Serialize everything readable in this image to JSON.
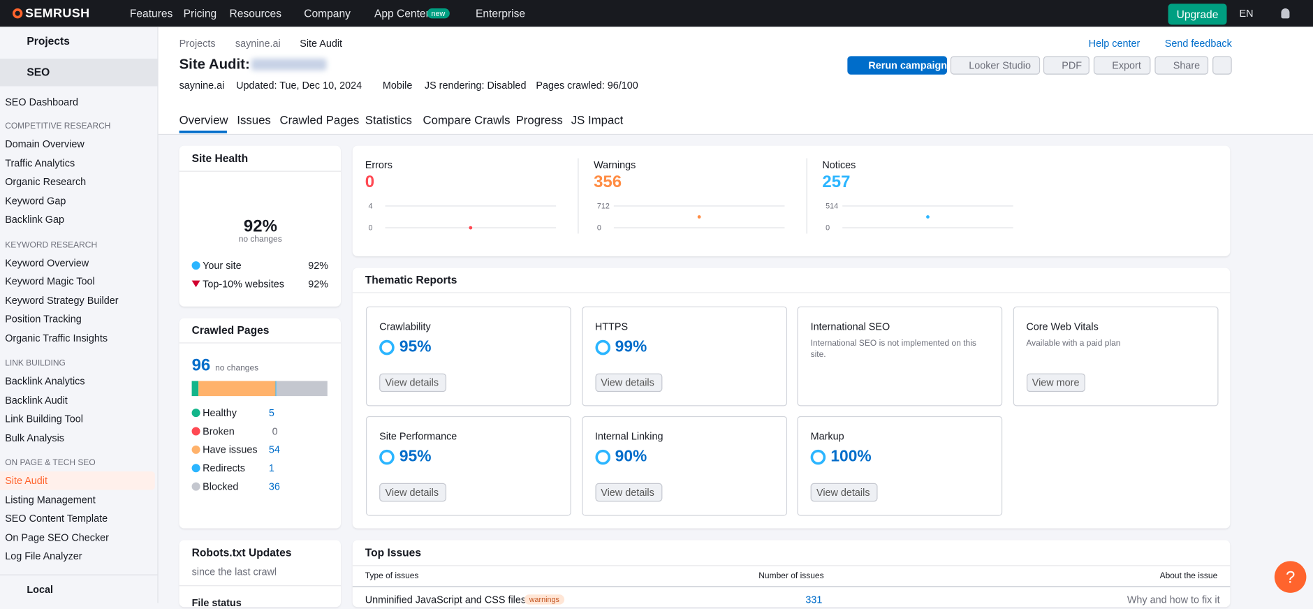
{
  "nav": {
    "logo": "SEMRUSH",
    "items": [
      "Features",
      "Pricing",
      "Resources",
      "Company",
      "App Center",
      "Enterprise"
    ],
    "badge": "new",
    "upgrade": "Upgrade",
    "lang": "EN"
  },
  "sidebar": {
    "projects": "Projects",
    "seo": "SEO",
    "dashboard": "SEO Dashboard",
    "groups": [
      {
        "title": "COMPETITIVE RESEARCH",
        "items": [
          "Domain Overview",
          "Traffic Analytics",
          "Organic Research",
          "Keyword Gap",
          "Backlink Gap"
        ]
      },
      {
        "title": "KEYWORD RESEARCH",
        "items": [
          "Keyword Overview",
          "Keyword Magic Tool",
          "Keyword Strategy Builder",
          "Position Tracking",
          "Organic Traffic Insights"
        ]
      },
      {
        "title": "LINK BUILDING",
        "items": [
          "Backlink Analytics",
          "Backlink Audit",
          "Link Building Tool",
          "Bulk Analysis"
        ]
      },
      {
        "title": "ON PAGE & TECH SEO",
        "items": [
          "Site Audit",
          "Listing Management",
          "SEO Content Template",
          "On Page SEO Checker",
          "Log File Analyzer"
        ]
      }
    ],
    "active": "Site Audit",
    "local": "Local"
  },
  "header": {
    "breadcrumbs": [
      "Projects",
      "saynine.ai",
      "Site Audit"
    ],
    "title": "Site Audit:",
    "help": "Help center",
    "feedback": "Send feedback",
    "buttons": [
      "Rerun campaign",
      "Looker Studio",
      "PDF",
      "Export",
      "Share"
    ],
    "meta": [
      "saynine.ai",
      "Updated: Tue, Dec 10, 2024",
      "Mobile",
      "JS rendering: Disabled",
      "Pages crawled: 96/100"
    ],
    "tabs": [
      "Overview",
      "Issues",
      "Crawled Pages",
      "Statistics",
      "Compare Crawls",
      "Progress",
      "JS Impact"
    ]
  },
  "site_health": {
    "title": "Site Health",
    "value": "92%",
    "note": "no changes",
    "legend": [
      {
        "label": "Your site",
        "value": "92%"
      },
      {
        "label": "Top-10% websites",
        "value": "92%"
      }
    ]
  },
  "crawled_pages": {
    "title": "Crawled Pages",
    "total": 96,
    "note": "no changes",
    "rows": [
      {
        "label": "Healthy",
        "count": 5,
        "color": "#13b58a"
      },
      {
        "label": "Broken",
        "count": 0,
        "color": "#ff4953"
      },
      {
        "label": "Have issues",
        "count": 54,
        "color": "#ffb26b"
      },
      {
        "label": "Redirects",
        "count": 1,
        "color": "#2bb5ff"
      },
      {
        "label": "Blocked",
        "count": 36,
        "color": "#c4c7cf"
      }
    ]
  },
  "robots": {
    "title": "Robots.txt Updates",
    "subtitle": "since the last crawl",
    "label": "File status"
  },
  "issues_summary": [
    {
      "label": "Errors",
      "value": 0,
      "ticks": [
        4,
        0
      ],
      "color": "#ff4953"
    },
    {
      "label": "Warnings",
      "value": 356,
      "ticks": [
        712,
        0
      ],
      "color": "#ff8c43"
    },
    {
      "label": "Notices",
      "value": 257,
      "ticks": [
        514,
        0
      ],
      "color": "#2bb5ff"
    }
  ],
  "thematic": {
    "title": "Thematic Reports",
    "cards": [
      {
        "title": "Crawlability",
        "score": "95%",
        "button": "View details"
      },
      {
        "title": "HTTPS",
        "score": "99%",
        "button": "View details"
      },
      {
        "title": "International SEO",
        "text": "International SEO is not implemented on this site."
      },
      {
        "title": "Core Web Vitals",
        "text": "Available with a paid plan",
        "button": "View more"
      },
      {
        "title": "Site Performance",
        "score": "95%",
        "button": "View details"
      },
      {
        "title": "Internal Linking",
        "score": "90%",
        "button": "View details"
      },
      {
        "title": "Markup",
        "score": "100%",
        "button": "View details"
      }
    ]
  },
  "top_issues": {
    "title": "Top Issues",
    "columns": [
      "Type of issues",
      "Number of issues",
      "About the issue"
    ],
    "rows": [
      {
        "issue": "Unminified JavaScript and CSS files",
        "tag": "warnings",
        "count": "331",
        "link": "Why and how to fix it"
      }
    ]
  }
}
